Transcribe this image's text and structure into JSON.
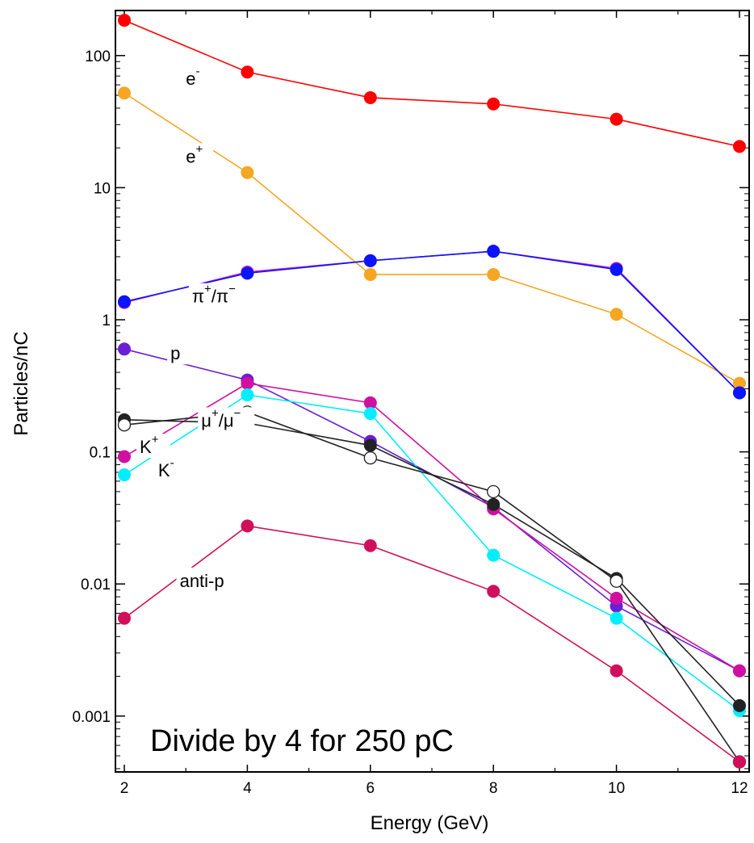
{
  "chart_data": {
    "type": "line",
    "title": "",
    "xlabel": "Energy (GeV)",
    "ylabel": "Particles/nC",
    "yscale": "log",
    "xlim": [
      2,
      12
    ],
    "ylim": [
      0.0004,
      250
    ],
    "grid": false,
    "x": [
      2,
      4,
      6,
      8,
      10,
      12
    ],
    "x_tick_labels": [
      "2",
      "4",
      "6",
      "8",
      "10",
      "12"
    ],
    "y_tick_labels": [
      "0.001",
      "0.01",
      "0.1",
      "1",
      "10",
      "100"
    ],
    "y_tick_values": [
      0.001,
      0.01,
      0.1,
      1,
      10,
      100
    ],
    "annotation": "Divide by 4 for 250 pC",
    "series": [
      {
        "color": "#ff0000",
        "marker": "filled",
        "values": [
          185,
          75,
          48,
          43,
          33,
          20.5
        ]
      },
      {
        "color": "#f5a623",
        "marker": "filled",
        "values": [
          52,
          13,
          2.2,
          2.2,
          1.1,
          0.33
        ]
      },
      {
        "color": "#d020c0",
        "marker": "filled",
        "values": [
          1.35,
          2.3,
          2.8,
          3.3,
          2.45,
          0.28
        ]
      },
      {
        "color": "#0a14ff",
        "marker": "filled",
        "values": [
          1.37,
          2.25,
          2.8,
          3.3,
          2.4,
          0.28
        ]
      },
      {
        "color": "#6a1fd6",
        "marker": "filled",
        "values": [
          0.6,
          0.35,
          0.12,
          0.038,
          0.0068,
          0.0022
        ]
      },
      {
        "color": "#d010a0",
        "marker": "filled",
        "values": [
          0.092,
          0.33,
          0.235,
          0.037,
          0.0078,
          0.0022
        ]
      },
      {
        "color": "#00eeff",
        "marker": "filled",
        "values": [
          0.067,
          0.27,
          0.195,
          0.0165,
          0.0055,
          0.0011
        ]
      },
      {
        "color": "#222222",
        "marker": "filled",
        "values": [
          0.175,
          0.165,
          0.112,
          0.04,
          0.011,
          0.0012
        ]
      },
      {
        "color": "#222222",
        "marker": "open",
        "values": [
          0.16,
          0.2,
          0.09,
          0.05,
          0.0105,
          0.00045
        ]
      },
      {
        "color": "#d0105a",
        "marker": "filled",
        "values": [
          0.0055,
          0.0275,
          0.0195,
          0.0088,
          0.0022,
          0.00045
        ]
      }
    ],
    "series_labels": [
      {
        "base": "e",
        "sup": "-",
        "at_x": 3.0,
        "at_y": 60,
        "w": 30
      },
      {
        "base": "e",
        "sup": "+",
        "at_x": 3.0,
        "at_y": 15.5,
        "w": 30
      },
      {
        "base": "π",
        "sup": "+",
        "mid": "/π",
        "sup2": "−",
        "at_x": 3.1,
        "at_y": 1.35,
        "w": 60
      },
      {
        "base": "p",
        "sup": "",
        "at_x": 2.75,
        "at_y": 0.5,
        "w": 22
      },
      {
        "base": "μ",
        "sup": "+",
        "mid": "/μ",
        "sup2": "−",
        "at_x": 3.25,
        "at_y": 0.155,
        "w": 62
      },
      {
        "base": "K",
        "sup": "+",
        "at_x": 2.25,
        "at_y": 0.098,
        "w": 34
      },
      {
        "base": "K",
        "sup": "-",
        "at_x": 2.55,
        "at_y": 0.065,
        "w": 32
      },
      {
        "base": "anti-p",
        "sup": "",
        "at_x": 2.9,
        "at_y": 0.0095,
        "w": 66
      }
    ]
  }
}
